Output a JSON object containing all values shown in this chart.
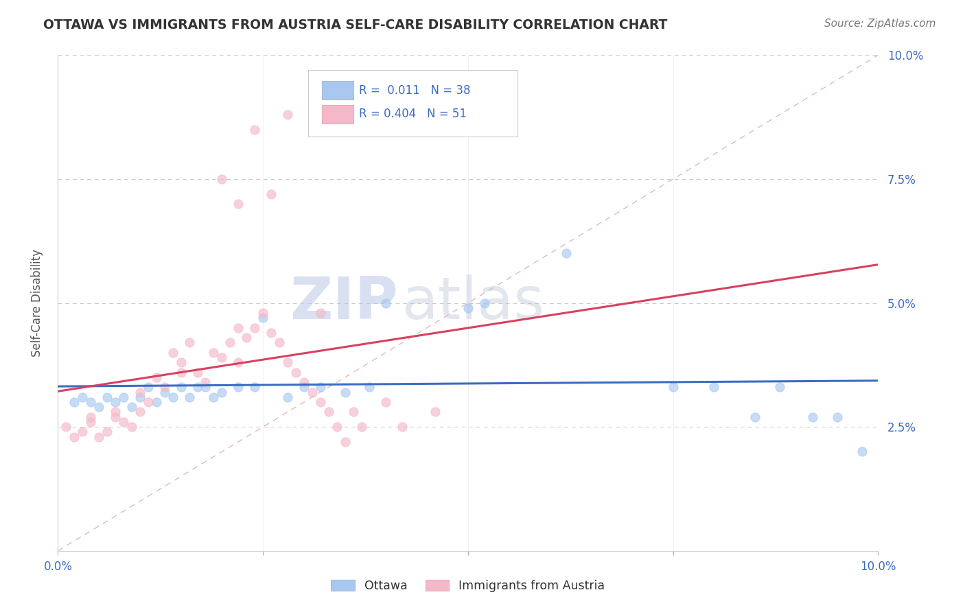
{
  "title": "OTTAWA VS IMMIGRANTS FROM AUSTRIA SELF-CARE DISABILITY CORRELATION CHART",
  "source": "Source: ZipAtlas.com",
  "ylabel": "Self-Care Disability",
  "xlim": [
    0.0,
    0.1
  ],
  "ylim": [
    0.0,
    0.1
  ],
  "color_ottawa": "#A8C8F0",
  "color_austria": "#F5B8C8",
  "color_trend_ottawa": "#3B6CC4",
  "color_trend_austria": "#D94060",
  "color_diagonal": "#E0B0B8",
  "watermark_zip": "ZIP",
  "watermark_atlas": "atlas",
  "ottawa_x": [
    0.002,
    0.003,
    0.004,
    0.005,
    0.006,
    0.007,
    0.008,
    0.009,
    0.01,
    0.011,
    0.012,
    0.013,
    0.014,
    0.015,
    0.016,
    0.017,
    0.018,
    0.019,
    0.02,
    0.022,
    0.024,
    0.025,
    0.028,
    0.03,
    0.032,
    0.035,
    0.038,
    0.04,
    0.05,
    0.052,
    0.062,
    0.075,
    0.08,
    0.085,
    0.088,
    0.092,
    0.095,
    0.098
  ],
  "ottawa_y": [
    0.03,
    0.031,
    0.03,
    0.029,
    0.031,
    0.03,
    0.031,
    0.029,
    0.031,
    0.033,
    0.03,
    0.032,
    0.031,
    0.033,
    0.031,
    0.033,
    0.033,
    0.031,
    0.032,
    0.033,
    0.033,
    0.047,
    0.031,
    0.033,
    0.033,
    0.032,
    0.033,
    0.05,
    0.049,
    0.05,
    0.06,
    0.033,
    0.033,
    0.027,
    0.033,
    0.027,
    0.027,
    0.02
  ],
  "austria_x": [
    0.001,
    0.002,
    0.003,
    0.004,
    0.004,
    0.005,
    0.006,
    0.007,
    0.007,
    0.008,
    0.009,
    0.01,
    0.01,
    0.011,
    0.012,
    0.013,
    0.014,
    0.015,
    0.015,
    0.016,
    0.017,
    0.018,
    0.019,
    0.02,
    0.021,
    0.022,
    0.022,
    0.023,
    0.024,
    0.025,
    0.026,
    0.027,
    0.028,
    0.029,
    0.03,
    0.031,
    0.032,
    0.033,
    0.034,
    0.035,
    0.036,
    0.037,
    0.04,
    0.042,
    0.046,
    0.024,
    0.028,
    0.032,
    0.02,
    0.026,
    0.022
  ],
  "austria_y": [
    0.025,
    0.023,
    0.024,
    0.027,
    0.026,
    0.023,
    0.024,
    0.027,
    0.028,
    0.026,
    0.025,
    0.028,
    0.032,
    0.03,
    0.035,
    0.033,
    0.04,
    0.038,
    0.036,
    0.042,
    0.036,
    0.034,
    0.04,
    0.039,
    0.042,
    0.038,
    0.045,
    0.043,
    0.045,
    0.048,
    0.044,
    0.042,
    0.038,
    0.036,
    0.034,
    0.032,
    0.03,
    0.028,
    0.025,
    0.022,
    0.028,
    0.025,
    0.03,
    0.025,
    0.028,
    0.085,
    0.088,
    0.048,
    0.075,
    0.072,
    0.07
  ]
}
